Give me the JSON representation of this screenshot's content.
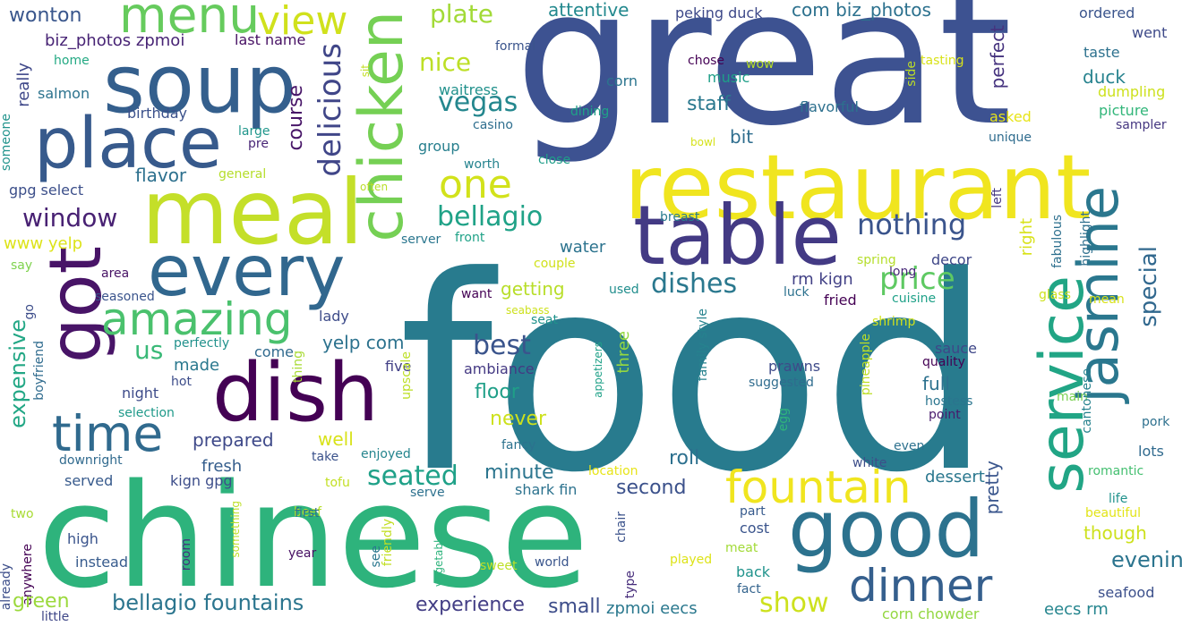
{
  "words": [
    {
      "text": "food",
      "color": "#287b8e"
    },
    {
      "text": "great",
      "color": "#3d5291"
    },
    {
      "text": "chinese",
      "color": "#2eb37c"
    },
    {
      "text": "restaurant",
      "color": "#f0e51f"
    },
    {
      "text": "meal",
      "color": "#c4df29"
    },
    {
      "text": "dish",
      "color": "#440154"
    },
    {
      "text": "table",
      "color": "#433a84"
    },
    {
      "text": "soup",
      "color": "#345f8d"
    },
    {
      "text": "place",
      "color": "#375a8c"
    },
    {
      "text": "every",
      "color": "#31678e"
    },
    {
      "text": "good",
      "color": "#2c728e"
    },
    {
      "text": "chicken",
      "color": "#75d054"
    },
    {
      "text": "got",
      "color": "#481467"
    },
    {
      "text": "service",
      "color": "#21a585"
    },
    {
      "text": "jasmine",
      "color": "#2a778e"
    },
    {
      "text": "menu",
      "color": "#66cb5d"
    },
    {
      "text": "time",
      "color": "#306a8e"
    },
    {
      "text": "amazing",
      "color": "#4ac16d"
    },
    {
      "text": "fountain",
      "color": "#f0e51f"
    },
    {
      "text": "dinner",
      "color": "#355f8d"
    },
    {
      "text": "view",
      "color": "#d0e11c"
    },
    {
      "text": "one",
      "color": "#d2e21b"
    },
    {
      "text": "delicious",
      "color": "#404688"
    },
    {
      "text": "price",
      "color": "#5ec962"
    },
    {
      "text": "nothing",
      "color": "#3a548c"
    },
    {
      "text": "bellagio",
      "color": "#1fa287"
    },
    {
      "text": "dishes",
      "color": "#2a788e"
    },
    {
      "text": "window",
      "color": "#482173"
    },
    {
      "text": "vegas",
      "color": "#24878e"
    },
    {
      "text": "nice",
      "color": "#bddf26"
    },
    {
      "text": "plate",
      "color": "#a2da37"
    },
    {
      "text": "special",
      "color": "#31688e"
    },
    {
      "text": "seated",
      "color": "#1fa188"
    },
    {
      "text": "best",
      "color": "#3a548c"
    },
    {
      "text": "expensive",
      "color": "#22a785"
    },
    {
      "text": "us",
      "color": "#39b977"
    },
    {
      "text": "show",
      "color": "#cde11d"
    },
    {
      "text": "course",
      "color": "#481668"
    },
    {
      "text": "bellagio fountains",
      "color": "#2b758e"
    },
    {
      "text": "experience",
      "color": "#433e85"
    },
    {
      "text": "wonton",
      "color": "#39568c"
    },
    {
      "text": "attentive",
      "color": "#23898e"
    },
    {
      "text": "com biz_photos",
      "color": "#2c718e"
    },
    {
      "text": "peking duck",
      "color": "#3e4989"
    },
    {
      "text": "ordered",
      "color": "#3a548c"
    },
    {
      "text": "went",
      "color": "#3e4a89"
    },
    {
      "text": "taste",
      "color": "#2d718e"
    },
    {
      "text": "biz_photos zpmoi",
      "color": "#482475"
    },
    {
      "text": "last name",
      "color": "#471164"
    },
    {
      "text": "formal",
      "color": "#3a548c"
    },
    {
      "text": "home",
      "color": "#23a983"
    },
    {
      "text": "salmon",
      "color": "#2c738e"
    },
    {
      "text": "really",
      "color": "#3f4889"
    },
    {
      "text": "birthday",
      "color": "#3b518b"
    },
    {
      "text": "corn",
      "color": "#2b758e"
    },
    {
      "text": "chose",
      "color": "#440154"
    },
    {
      "text": "music",
      "color": "#1f9f88"
    },
    {
      "text": "wow",
      "color": "#b8de29"
    },
    {
      "text": "tasting",
      "color": "#d8e219"
    },
    {
      "text": "sit",
      "color": "#c2df23"
    },
    {
      "text": "side",
      "color": "#bddf26"
    },
    {
      "text": "dumpling",
      "color": "#cde11d"
    },
    {
      "text": "picture",
      "color": "#32b67a"
    },
    {
      "text": "asked",
      "color": "#e7e419"
    },
    {
      "text": "sampler",
      "color": "#453781"
    },
    {
      "text": "unique",
      "color": "#2f6c8e"
    },
    {
      "text": "perfect",
      "color": "#46337f"
    },
    {
      "text": "duck",
      "color": "#26828e"
    },
    {
      "text": "waitress",
      "color": "#21918c"
    },
    {
      "text": "casino",
      "color": "#2e6e8e"
    },
    {
      "text": "staff",
      "color": "#2a788e"
    },
    {
      "text": "flavorful",
      "color": "#2d708e"
    },
    {
      "text": "dining",
      "color": "#1fa287"
    },
    {
      "text": "group",
      "color": "#277f8e"
    },
    {
      "text": "bit",
      "color": "#2e6d8e"
    },
    {
      "text": "bowl",
      "color": "#d5e21a"
    },
    {
      "text": "worth",
      "color": "#25838e"
    },
    {
      "text": "close",
      "color": "#1f9e89"
    },
    {
      "text": "large",
      "color": "#1f968b"
    },
    {
      "text": "pre",
      "color": "#482576"
    },
    {
      "text": "someone",
      "color": "#20938c"
    },
    {
      "text": "flavor",
      "color": "#2d708e"
    },
    {
      "text": "general",
      "color": "#b5de2b"
    },
    {
      "text": "gpg select",
      "color": "#3c4f8a"
    },
    {
      "text": "often",
      "color": "#bade28"
    },
    {
      "text": "front",
      "color": "#1fa287"
    },
    {
      "text": "server",
      "color": "#2a768e"
    },
    {
      "text": "breast",
      "color": "#287c8e"
    },
    {
      "text": "left",
      "color": "#453882"
    },
    {
      "text": "fabulous",
      "color": "#2d708e"
    },
    {
      "text": "highlight",
      "color": "#2e6f8e"
    },
    {
      "text": "right",
      "color": "#d8e219"
    },
    {
      "text": "water",
      "color": "#2c738e"
    },
    {
      "text": "www yelp",
      "color": "#dde318"
    },
    {
      "text": "say",
      "color": "#7fd34e"
    },
    {
      "text": "area",
      "color": "#471365"
    },
    {
      "text": "getting",
      "color": "#b8de29"
    },
    {
      "text": "couple",
      "color": "#d0e11c"
    },
    {
      "text": "long",
      "color": "#482979"
    },
    {
      "text": "spring",
      "color": "#b5de2b"
    },
    {
      "text": "decor",
      "color": "#3f4788"
    },
    {
      "text": "rm kign",
      "color": "#424186"
    },
    {
      "text": "luck",
      "color": "#2c718e"
    },
    {
      "text": "fried",
      "color": "#440154"
    },
    {
      "text": "cuisine",
      "color": "#1fa188"
    },
    {
      "text": "glass",
      "color": "#cde11d"
    },
    {
      "text": "mean",
      "color": "#d8e219"
    },
    {
      "text": "seasoned",
      "color": "#3a548c"
    },
    {
      "text": "want",
      "color": "#440154"
    },
    {
      "text": "used",
      "color": "#218e8d"
    },
    {
      "text": "seabass",
      "color": "#cde11d"
    },
    {
      "text": "seat",
      "color": "#20938c"
    },
    {
      "text": "lady",
      "color": "#3e4c8a"
    },
    {
      "text": "shrimp",
      "color": "#d2e21b"
    },
    {
      "text": "go",
      "color": "#3d4d8a"
    },
    {
      "text": "perfectly",
      "color": "#21918c"
    },
    {
      "text": "come",
      "color": "#306a8e"
    },
    {
      "text": "yelp com",
      "color": "#2c728e"
    },
    {
      "text": "family style",
      "color": "#26828e"
    },
    {
      "text": "pineapple",
      "color": "#bddf26"
    },
    {
      "text": "ambiance",
      "color": "#443983"
    },
    {
      "text": "appetizers",
      "color": "#1fa188"
    },
    {
      "text": "made",
      "color": "#2a788e"
    },
    {
      "text": "boyfriend",
      "color": "#2f6b8e"
    },
    {
      "text": "night",
      "color": "#3e4c8a"
    },
    {
      "text": "five",
      "color": "#424086"
    },
    {
      "text": "three",
      "color": "#95d840"
    },
    {
      "text": "prawns",
      "color": "#3e4a89"
    },
    {
      "text": "sauce",
      "color": "#3f4788"
    },
    {
      "text": "quality",
      "color": "#440154"
    },
    {
      "text": "hot",
      "color": "#3d4d8a"
    },
    {
      "text": "suggested",
      "color": "#2f6c8e"
    },
    {
      "text": "full",
      "color": "#2c718e"
    },
    {
      "text": "hostess",
      "color": "#2b758e"
    },
    {
      "text": "point",
      "color": "#481a6c"
    },
    {
      "text": "main",
      "color": "#7ad151"
    },
    {
      "text": "cantonese",
      "color": "#26828e"
    },
    {
      "text": "pork",
      "color": "#2d708e"
    },
    {
      "text": "selection",
      "color": "#1f9a8a"
    },
    {
      "text": "thing",
      "color": "#a8db34"
    },
    {
      "text": "floor",
      "color": "#1f9f88"
    },
    {
      "text": "upscale",
      "color": "#bddf26"
    },
    {
      "text": "never",
      "color": "#cde11d"
    },
    {
      "text": "egg",
      "color": "#2fb47c"
    },
    {
      "text": "well",
      "color": "#d8e219"
    },
    {
      "text": "prepared",
      "color": "#3e4989"
    },
    {
      "text": "fancy",
      "color": "#2c728e"
    },
    {
      "text": "even",
      "color": "#2d718e"
    },
    {
      "text": "lots",
      "color": "#306a8e"
    },
    {
      "text": "downright",
      "color": "#306a8e"
    },
    {
      "text": "enjoyed",
      "color": "#25858e"
    },
    {
      "text": "take",
      "color": "#3b528b"
    },
    {
      "text": "location",
      "color": "#e7e419"
    },
    {
      "text": "white",
      "color": "#3d4e8a"
    },
    {
      "text": "fresh",
      "color": "#355e8d"
    },
    {
      "text": "minute",
      "color": "#2b758e"
    },
    {
      "text": "roll",
      "color": "#2d708e"
    },
    {
      "text": "romantic",
      "color": "#44bf70"
    },
    {
      "text": "served",
      "color": "#375a8c"
    },
    {
      "text": "kign gpg",
      "color": "#3d4e8a"
    },
    {
      "text": "tofu",
      "color": "#c2df23"
    },
    {
      "text": "shark fin",
      "color": "#2c728e"
    },
    {
      "text": "second",
      "color": "#3b518b"
    },
    {
      "text": "dessert",
      "color": "#2a778e"
    },
    {
      "text": "serve",
      "color": "#2d718e"
    },
    {
      "text": "life",
      "color": "#20928c"
    },
    {
      "text": "beef",
      "color": "#b5de2b"
    },
    {
      "text": "two",
      "color": "#a8db34"
    },
    {
      "text": "something",
      "color": "#bddf26"
    },
    {
      "text": "pretty",
      "color": "#39558c"
    },
    {
      "text": "beautiful",
      "color": "#e2e418"
    },
    {
      "text": "first",
      "color": "#2d718e"
    },
    {
      "text": "part",
      "color": "#375b8d"
    },
    {
      "text": "already",
      "color": "#3d4e8a"
    },
    {
      "text": "anywhere",
      "color": "#440154"
    },
    {
      "text": "high",
      "color": "#3a548c"
    },
    {
      "text": "chair",
      "color": "#3b528b"
    },
    {
      "text": "cost",
      "color": "#3a548c"
    },
    {
      "text": "though",
      "color": "#cde11d"
    },
    {
      "text": "instead",
      "color": "#375b8d"
    },
    {
      "text": "room",
      "color": "#46307e"
    },
    {
      "text": "year",
      "color": "#471063"
    },
    {
      "text": "meat",
      "color": "#a2da37"
    },
    {
      "text": "evening",
      "color": "#2b748e"
    },
    {
      "text": "see",
      "color": "#2a778e"
    },
    {
      "text": "friendly",
      "color": "#c2df23"
    },
    {
      "text": "vegetables",
      "color": "#2eb37c"
    },
    {
      "text": "sweet",
      "color": "#bddf26"
    },
    {
      "text": "world",
      "color": "#39558c"
    },
    {
      "text": "played",
      "color": "#dde318"
    },
    {
      "text": "back",
      "color": "#20938c"
    },
    {
      "text": "type",
      "color": "#472d7b"
    },
    {
      "text": "green",
      "color": "#9bd93c"
    },
    {
      "text": "fact",
      "color": "#33638d"
    },
    {
      "text": "little",
      "color": "#3f4788"
    },
    {
      "text": "small",
      "color": "#3d4d8a"
    },
    {
      "text": "zpmoi eecs",
      "color": "#2a788e"
    },
    {
      "text": "seafood",
      "color": "#3c508b"
    },
    {
      "text": "eecs rm",
      "color": "#25858e"
    },
    {
      "text": "corn chowder",
      "color": "#93d741"
    }
  ]
}
